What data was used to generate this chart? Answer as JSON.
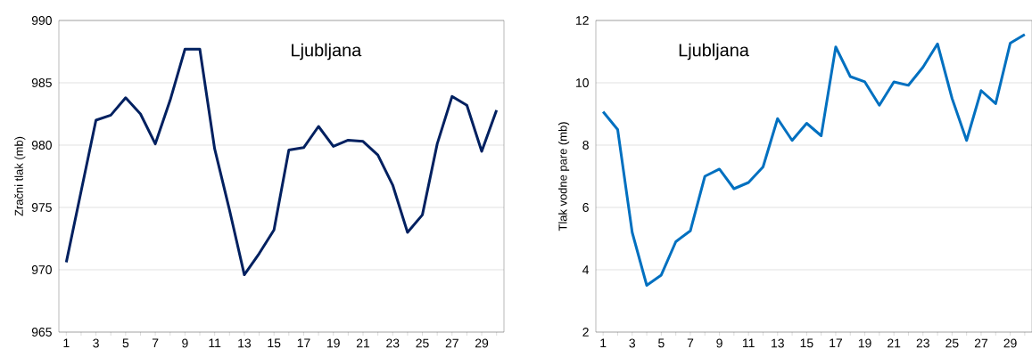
{
  "chart_data": [
    {
      "type": "line",
      "title": "Ljubljana",
      "ylabel": "Zračni tlak (mb)",
      "categories": [
        "1",
        null,
        "3",
        null,
        "5",
        null,
        "7",
        null,
        "9",
        null,
        "11",
        null,
        "13",
        null,
        "15",
        null,
        "17",
        null,
        "19",
        null,
        "21",
        null,
        "23",
        null,
        "25",
        null,
        "27",
        null,
        "29",
        null
      ],
      "series": [
        {
          "color": "#002060",
          "values": [
            970.6,
            976.3,
            982.0,
            982.4,
            983.8,
            982.5,
            980.1,
            983.6,
            987.7,
            987.7,
            979.7,
            974.8,
            969.6,
            971.3,
            973.2,
            979.6,
            979.8,
            981.5,
            979.9,
            980.4,
            980.3,
            979.2,
            976.8,
            973.0,
            974.4,
            980.1,
            983.9,
            983.2,
            979.5,
            982.8
          ]
        }
      ],
      "ylim": [
        965,
        990
      ],
      "yticks": [
        965,
        970,
        975,
        980,
        985,
        990
      ],
      "grid": "y",
      "marker": "none",
      "line_style": "solid"
    },
    {
      "type": "line",
      "title": "Ljubljana",
      "ylabel": "Tlak vodne pare (mb)",
      "categories": [
        "1",
        null,
        "3",
        null,
        "5",
        null,
        "7",
        null,
        "9",
        null,
        "11",
        null,
        "13",
        null,
        "15",
        null,
        "17",
        null,
        "19",
        null,
        "21",
        null,
        "23",
        null,
        "25",
        null,
        "27",
        null,
        "29",
        null
      ],
      "series": [
        {
          "color": "#0070c0",
          "values": [
            9.07,
            8.5,
            5.2,
            3.5,
            3.83,
            4.9,
            5.25,
            7.0,
            7.23,
            6.6,
            6.8,
            7.3,
            8.85,
            8.15,
            8.7,
            8.3,
            11.15,
            10.2,
            10.03,
            9.28,
            10.03,
            9.92,
            10.5,
            11.25,
            9.5,
            8.15,
            9.75,
            9.33,
            11.27,
            11.55
          ]
        }
      ],
      "ylim": [
        2,
        12
      ],
      "yticks": [
        2,
        4,
        6,
        8,
        10,
        12
      ],
      "grid": "y",
      "marker": "none",
      "line_style": "solid"
    }
  ]
}
